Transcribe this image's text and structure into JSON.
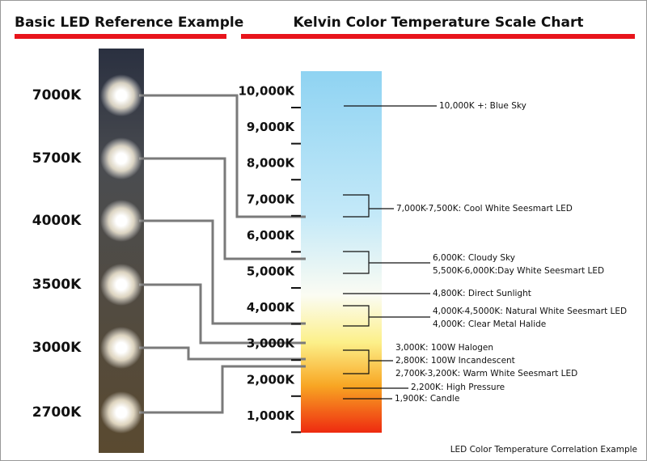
{
  "headers": {
    "left": "Basic LED Reference Example",
    "right": "Kelvin Color Temperature Scale Chart"
  },
  "led_labels": [
    "7000K",
    "5700K",
    "4000K",
    "3500K",
    "3000K",
    "2700K"
  ],
  "scale_ticks": [
    "10,000K",
    "9,000K",
    "8,000K",
    "7,000K",
    "6,000K",
    "5,000K",
    "4,000K",
    "3,000K",
    "2,000K",
    "1,000K"
  ],
  "annotations": [
    "10,000K +: Blue Sky",
    "7,000K-7,500K: Cool White Seesmart LED",
    "6,000K: Cloudy Sky",
    "5,500K-6,000K:Day White Seesmart LED",
    "4,800K: Direct Sunlight",
    "4,000K-4,5000K: Natural White Seesmart LED",
    "4,000K: Clear Metal Halide",
    "3,000K: 100W Halogen",
    "2,800K: 100W Incandescent",
    "2,700K-3,200K: Warm White Seesmart LED",
    "2,200K: High Pressure",
    "1,900K: Candle"
  ],
  "footer": "LED Color Temperature Correlation Example"
}
